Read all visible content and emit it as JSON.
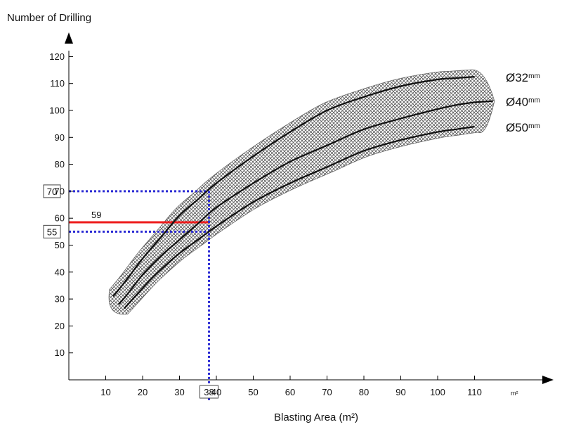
{
  "chart_data": {
    "type": "line",
    "ylabel": "Number of Drilling",
    "xlabel": "Blasting Area (m²)",
    "x_unit": "m²",
    "xlim": [
      0,
      120
    ],
    "ylim": [
      0,
      120
    ],
    "x_ticks": [
      "10",
      "20",
      "30",
      "40",
      "50",
      "60",
      "70",
      "80",
      "90",
      "100",
      "110"
    ],
    "y_ticks": [
      "10",
      "20",
      "30",
      "40",
      "50",
      "60",
      "70",
      "80",
      "90",
      "100",
      "110",
      "120"
    ],
    "series": [
      {
        "name": "Ø32mm",
        "label_main": "Ø32",
        "label_unit": "mm",
        "color": "#111111",
        "x": [
          12,
          15,
          20,
          25,
          30,
          35,
          40,
          50,
          60,
          70,
          80,
          90,
          100,
          105,
          110
        ],
        "y": [
          31,
          36,
          45,
          53,
          61,
          67,
          73,
          83,
          92,
          100,
          105,
          109,
          111.5,
          112,
          112.5
        ]
      },
      {
        "name": "Ø40mm",
        "label_main": "Ø40",
        "label_unit": "mm",
        "color": "#111111",
        "x": [
          13.5,
          16,
          20,
          25,
          30,
          35,
          40,
          50,
          60,
          70,
          80,
          90,
          100,
          105,
          110,
          115
        ],
        "y": [
          28,
          32,
          39,
          46,
          52,
          58,
          64,
          73,
          81,
          87,
          93,
          97,
          100.5,
          102,
          103,
          103.5
        ]
      },
      {
        "name": "Ø50mm",
        "label_main": "Ø50",
        "label_unit": "mm",
        "color": "#111111",
        "x": [
          15,
          18,
          22,
          25,
          30,
          35,
          40,
          50,
          60,
          70,
          80,
          90,
          100,
          105,
          110
        ],
        "y": [
          26.5,
          31,
          37,
          41,
          47,
          52,
          57,
          66,
          73,
          79,
          85,
          89,
          92,
          93,
          94
        ]
      }
    ],
    "band_color": "#888888",
    "annotations": {
      "reference_x": {
        "value": 38,
        "label": "38",
        "color": "#2b2bd4"
      },
      "reference_lines": [
        {
          "value": 70,
          "label": "70",
          "color": "#2b2bd4",
          "style": "dotted"
        },
        {
          "value": 55,
          "label": "55",
          "color": "#2b2bd4",
          "style": "dotted"
        },
        {
          "value": 58.5,
          "label": "59",
          "color": "#ee1b1b",
          "style": "solid"
        }
      ]
    }
  }
}
